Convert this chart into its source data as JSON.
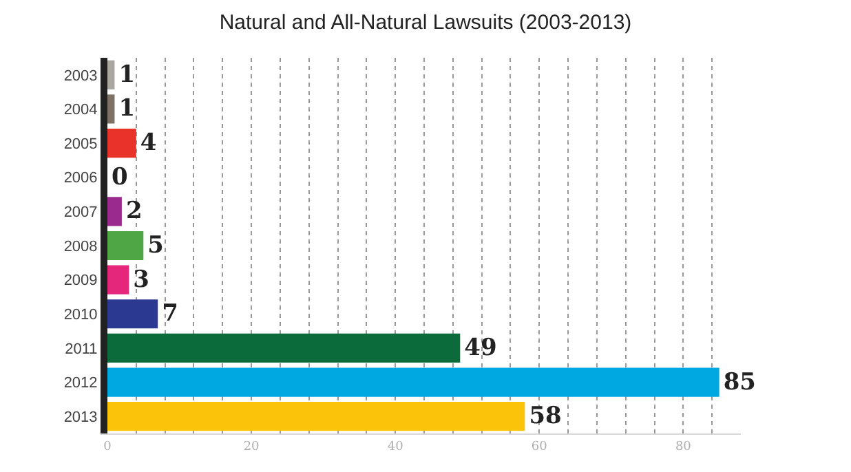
{
  "chart_data": {
    "type": "bar",
    "orientation": "horizontal",
    "title": "Natural and All-Natural Lawsuits (2003-2013)",
    "categories": [
      "2003",
      "2004",
      "2005",
      "2006",
      "2007",
      "2008",
      "2009",
      "2010",
      "2011",
      "2012",
      "2013"
    ],
    "values": [
      1,
      1,
      4,
      0,
      2,
      5,
      3,
      7,
      49,
      85,
      58
    ],
    "colors": [
      "#aaa7a1",
      "#7d7265",
      "#e8322a",
      "#888888",
      "#9b2a8f",
      "#4ea644",
      "#e5277b",
      "#2b3990",
      "#0b6b3a",
      "#00a8e1",
      "#fcc30b"
    ],
    "xlim": [
      0,
      88
    ],
    "xticks": [
      0,
      {
        "value": 4,
        "label": null
      },
      {
        "value": 8,
        "label": null
      },
      {
        "value": 12,
        "label": null
      },
      {
        "value": 16,
        "label": null
      },
      20,
      {
        "value": 24,
        "label": null
      },
      {
        "value": 28,
        "label": null
      },
      {
        "value": 32,
        "label": null
      },
      {
        "value": 36,
        "label": null
      },
      40,
      {
        "value": 44,
        "label": null
      },
      {
        "value": 48,
        "label": null
      },
      {
        "value": 52,
        "label": null
      },
      {
        "value": 56,
        "label": null
      },
      60,
      {
        "value": 64,
        "label": null
      },
      {
        "value": 68,
        "label": null
      },
      {
        "value": 72,
        "label": null
      },
      {
        "value": 76,
        "label": null
      },
      80,
      {
        "value": 84,
        "label": null
      }
    ],
    "grid": "x",
    "data_labels": true
  }
}
